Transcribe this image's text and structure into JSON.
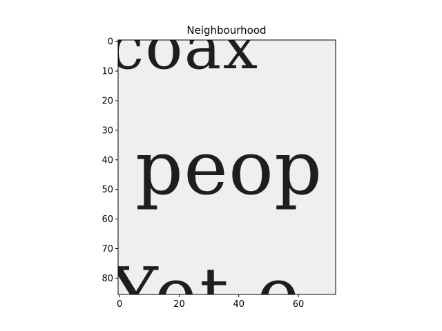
{
  "chart_data": {
    "type": "heatmap",
    "title": "Neighbourhood",
    "xlabel": "",
    "ylabel": "",
    "xlim": [
      -0.5,
      72.5
    ],
    "ylim": [
      85.5,
      -0.5
    ],
    "xticks": [
      0,
      20,
      40,
      60
    ],
    "yticks": [
      0,
      10,
      20,
      30,
      40,
      50,
      60,
      70,
      80
    ],
    "colormap": "gray",
    "image_size": {
      "width": 73,
      "height": 86
    },
    "image_description_text": [
      "coax",
      "peop",
      "Yet e"
    ],
    "grid": false
  },
  "colors": {
    "paper": "#efefef",
    "ink": "#1e1e1e",
    "axis": "#000000"
  }
}
